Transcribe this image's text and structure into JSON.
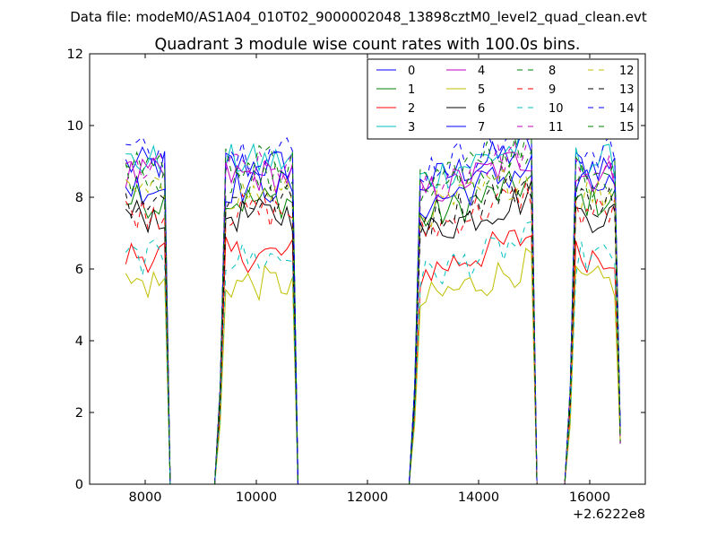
{
  "suptitle": "Data file: modeM0/AS1A04_010T02_9000002048_13898cztM0_level2_quad_clean.evt",
  "chart_data": {
    "type": "line",
    "title": "Quadrant 3 module wise count rates with 100.0s bins.",
    "xlabel": "",
    "ylabel": "",
    "x_offset_label": "+2.6222e8",
    "xlim": [
      7000,
      17000
    ],
    "ylim": [
      0,
      12
    ],
    "x_ticks": [
      8000,
      10000,
      12000,
      14000,
      16000
    ],
    "y_ticks": [
      0,
      2,
      4,
      6,
      8,
      10,
      12
    ],
    "grid": false,
    "legend_position": "top-right",
    "legend_columns": 4,
    "segments": [
      {
        "x_start": 7650,
        "x_end": 8450
      },
      {
        "x_start": 9350,
        "x_end": 10750
      },
      {
        "x_start": 12850,
        "x_end": 15050
      },
      {
        "x_start": 15650,
        "x_end": 16550
      }
    ],
    "series": [
      {
        "name": "0",
        "color": "#0000ff",
        "dash": "solid",
        "level": 8.9
      },
      {
        "name": "1",
        "color": "#008000",
        "dash": "solid",
        "level": 7.9
      },
      {
        "name": "2",
        "color": "#ff0000",
        "dash": "solid",
        "level": 6.4
      },
      {
        "name": "3",
        "color": "#00bfbf",
        "dash": "solid",
        "level": 9.0
      },
      {
        "name": "4",
        "color": "#bf00bf",
        "dash": "solid",
        "level": 8.6
      },
      {
        "name": "5",
        "color": "#bfbf00",
        "dash": "solid",
        "level": 5.6
      },
      {
        "name": "6",
        "color": "#000000",
        "dash": "solid",
        "level": 7.5
      },
      {
        "name": "7",
        "color": "#0000ff",
        "dash": "solid",
        "level": 8.3
      },
      {
        "name": "8",
        "color": "#008000",
        "dash": "dashed",
        "level": 8.5
      },
      {
        "name": "9",
        "color": "#ff0000",
        "dash": "dashed",
        "level": 7.6
      },
      {
        "name": "10",
        "color": "#00bfbf",
        "dash": "dashed",
        "level": 6.3
      },
      {
        "name": "11",
        "color": "#bf00bf",
        "dash": "dashed",
        "level": 8.8
      },
      {
        "name": "12",
        "color": "#bfbf00",
        "dash": "dashed",
        "level": 8.1
      },
      {
        "name": "13",
        "color": "#000000",
        "dash": "dashed",
        "level": 7.9
      },
      {
        "name": "14",
        "color": "#0000ff",
        "dash": "dashed",
        "level": 9.3
      },
      {
        "name": "15",
        "color": "#008000",
        "dash": "dashed",
        "level": 9.0
      }
    ]
  }
}
